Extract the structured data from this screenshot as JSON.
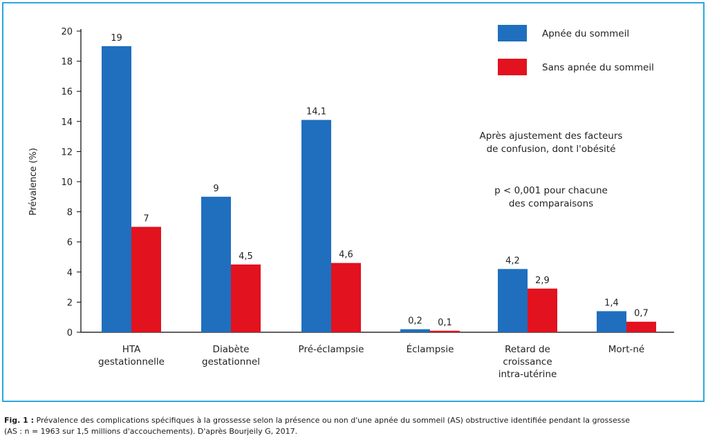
{
  "chart_data": {
    "type": "bar",
    "categories": [
      [
        "HTA",
        "gestationnelle"
      ],
      [
        "Diabète",
        "gestationnel"
      ],
      [
        "Pré-éclampsie"
      ],
      [
        "Éclampsie"
      ],
      [
        "Retard de",
        "croissance",
        "intra-utérine"
      ],
      [
        "Mort-né"
      ]
    ],
    "series": [
      {
        "name": "Apnée du sommeil",
        "color": "#1f6fbe",
        "values": [
          19,
          9,
          14.1,
          0.2,
          4.2,
          1.4
        ],
        "labels": [
          "19",
          "9",
          "14,1",
          "0,2",
          "4,2",
          "1,4"
        ]
      },
      {
        "name": "Sans apnée du sommeil",
        "color": "#e2121f",
        "values": [
          7,
          4.5,
          4.6,
          0.1,
          2.9,
          0.7
        ],
        "labels": [
          "7",
          "4,5",
          "4,6",
          "0,1",
          "2,9",
          "0,7"
        ]
      }
    ],
    "ylabel": "Prévalence (%)",
    "ylim": [
      0,
      20
    ],
    "yticks": [
      0,
      2,
      4,
      6,
      8,
      10,
      12,
      14,
      16,
      18,
      20
    ],
    "grid": false,
    "legend": "top-right",
    "annotations": [
      [
        "Après ajustement des facteurs",
        "de confusion, dont l'obésité"
      ],
      [
        "p < 0,001 pour chacune",
        "des comparaisons"
      ]
    ]
  },
  "caption": {
    "label": "Fig. 1 :",
    "line1": " Prévalence des complications spécifiques à la grossesse selon la présence ou non d'une apnée du sommeil (AS) obstructive identifiée pendant la grossesse",
    "line2": "(AS : n = 1963 sur 1,5 millions d'accouchements). D'après Bourjeily G, 2017."
  }
}
